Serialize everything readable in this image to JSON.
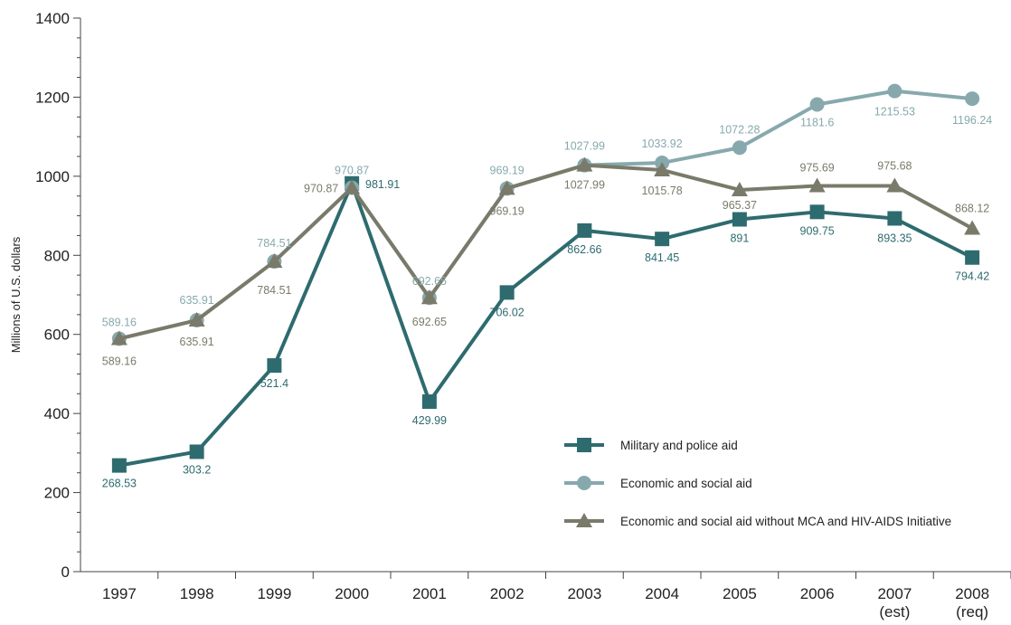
{
  "chart_data": {
    "type": "line",
    "title": "",
    "xlabel": "",
    "ylabel": "Millions of U.S. dollars",
    "ylim": [
      0,
      1400
    ],
    "yticks": [
      0,
      200,
      400,
      600,
      800,
      1000,
      1200,
      1400
    ],
    "grid": false,
    "legend": "bottom-right",
    "categories": [
      [
        "1997"
      ],
      [
        "1998"
      ],
      [
        "1999"
      ],
      [
        "2000"
      ],
      [
        "2001"
      ],
      [
        "2002"
      ],
      [
        "2003"
      ],
      [
        "2004"
      ],
      [
        "2005"
      ],
      [
        "2006"
      ],
      [
        "2007",
        "(est)"
      ],
      [
        "2008",
        "(req)"
      ]
    ],
    "series": [
      {
        "name": "Military and police aid",
        "color": "#2e6b6f",
        "marker": "square",
        "values": [
          268.53,
          303.2,
          521.4,
          981.91,
          429.99,
          706.02,
          862.66,
          841.45,
          891,
          909.75,
          893.35,
          794.42
        ],
        "labels": [
          "268.53",
          "303.2",
          "521.4",
          "981.91",
          "429.99",
          "706.02",
          "862.66",
          "841.45",
          "891",
          "909.75",
          "893.35",
          "794.42"
        ]
      },
      {
        "name": "Economic and social aid",
        "color": "#87a9ad",
        "marker": "circle",
        "values": [
          589.16,
          635.91,
          784.51,
          970.87,
          692.65,
          969.19,
          1027.99,
          1033.92,
          1072.28,
          1181.6,
          1215.53,
          1196.24
        ],
        "labels": [
          "589.16",
          "635.91",
          "784.51",
          "970.87",
          "692.65",
          "969.19",
          "1027.99",
          "1033.92",
          "1072.28",
          "1181.6",
          "1215.53",
          "1196.24"
        ]
      },
      {
        "name": "Economic and social aid without MCA and HIV-AIDS Initiative",
        "color": "#7a7a6a",
        "marker": "triangle",
        "values": [
          589.16,
          635.91,
          784.51,
          970.87,
          692.65,
          969.19,
          1027.99,
          1015.78,
          965.37,
          975.69,
          975.68,
          868.12
        ],
        "labels": [
          "589.16",
          "635.91",
          "784.51",
          "970.87",
          "692.65",
          "969.19",
          "1027.99",
          "1015.78",
          "965.37",
          "975.69",
          "975.68",
          "868.12"
        ]
      }
    ]
  }
}
